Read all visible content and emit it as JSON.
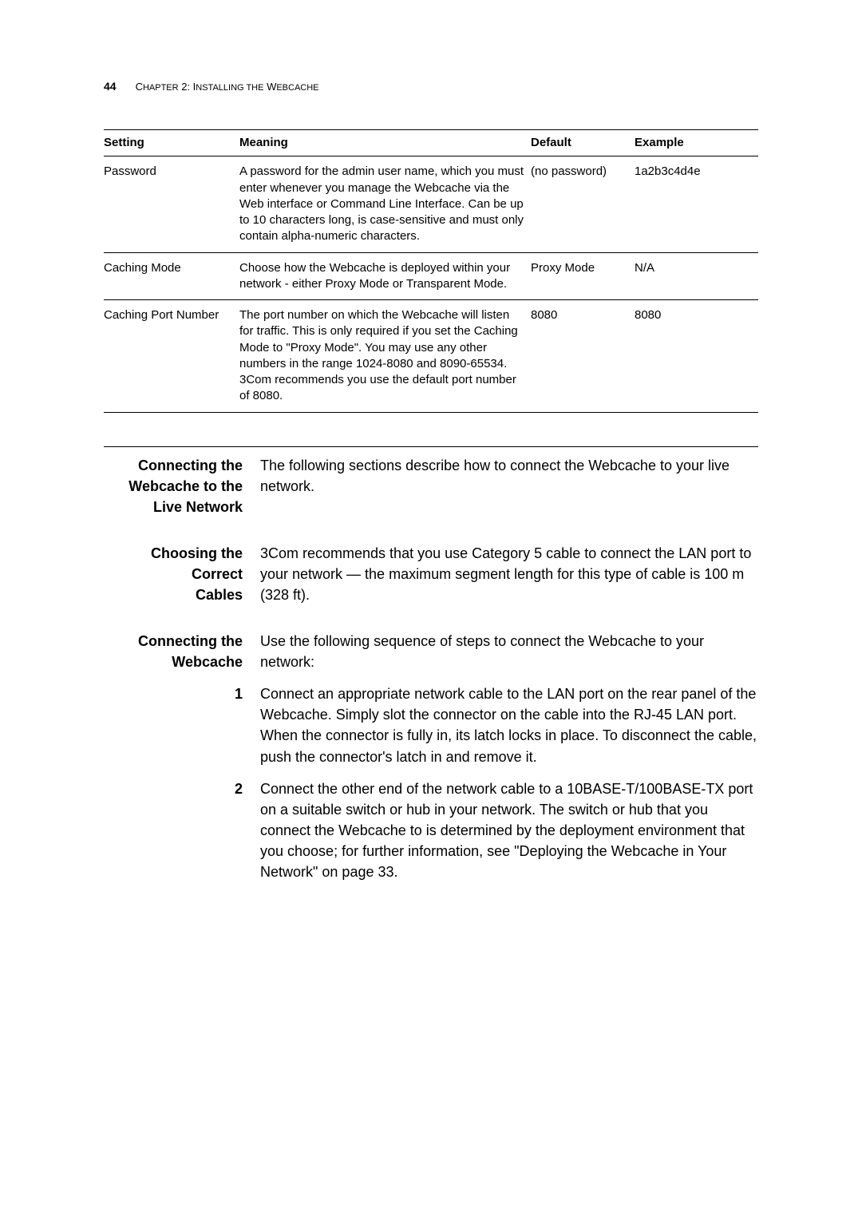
{
  "header": {
    "page_number": "44",
    "chapter_prefix": "C",
    "chapter_word": "HAPTER",
    "chapter_num": " 2: I",
    "chapter_rest": "NSTALLING THE",
    "chapter_w": " W",
    "chapter_end": "EBCACHE"
  },
  "table": {
    "headers": {
      "setting": "Setting",
      "meaning": "Meaning",
      "default": "Default",
      "example": "Example"
    },
    "rows": [
      {
        "setting": "Password",
        "meaning": "A password for the admin user name, which you must enter whenever you manage the Webcache via the Web interface or Command Line Interface. Can be up to 10 characters long, is case-sensitive and must only contain alpha-numeric characters.",
        "default": "(no password)",
        "example": "1a2b3c4d4e"
      },
      {
        "setting": "Caching Mode",
        "meaning": "Choose how the Webcache is deployed within your network - either Proxy Mode or Transparent Mode.",
        "default": "Proxy Mode",
        "example": "N/A"
      },
      {
        "setting": "Caching Port Number",
        "meaning": "The port number on which the Webcache will listen for traffic. This is only required if you set the Caching Mode to \"Proxy Mode\". You may use any other numbers in the range 1024-8080 and 8090-65534. 3Com recommends you use the default port number of 8080.",
        "default": "8080",
        "example": "8080"
      }
    ]
  },
  "sections": {
    "connecting_title_l1": "Connecting the",
    "connecting_title_l2": "Webcache to the",
    "connecting_title_l3": "Live Network",
    "connecting_body": "The following sections describe how to connect the Webcache to your live network.",
    "choosing_title_l1": "Choosing the Correct",
    "choosing_title_l2": "Cables",
    "choosing_body": "3Com recommends that you use Category 5 cable to connect the LAN port to your network — the maximum segment length for this type of cable is 100 m (328 ft).",
    "connecting2_title_l1": "Connecting the",
    "connecting2_title_l2": "Webcache",
    "connecting2_body": "Use the following sequence of steps to connect the Webcache to your network:",
    "step1_num": "1",
    "step1_body": "Connect an appropriate network cable to the LAN port on the rear panel of the Webcache. Simply slot the connector on the cable into the RJ-45 LAN port. When the connector is fully in, its latch locks in place. To disconnect the cable, push the connector's latch in and remove it.",
    "step2_num": "2",
    "step2_body": "Connect the other end of the network cable to a 10BASE-T/100BASE-TX port on a suitable switch or hub in your network. The switch or hub that you connect the Webcache to is determined by the deployment environment that you choose; for further information, see \"Deploying the Webcache in Your Network\" on page 33."
  }
}
